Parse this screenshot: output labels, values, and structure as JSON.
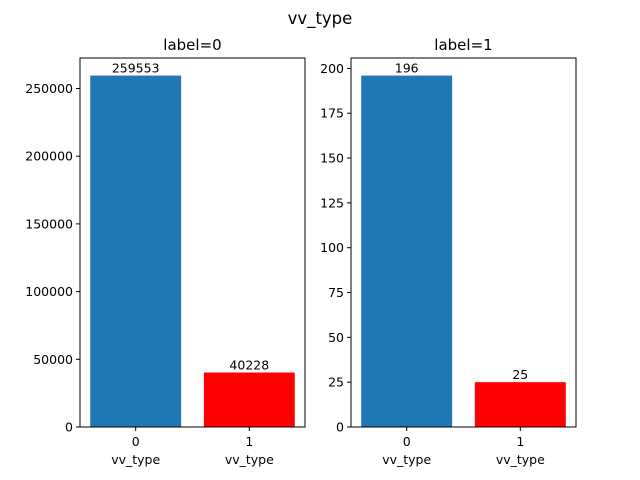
{
  "figure_title": "vv_type",
  "chart_data": [
    {
      "type": "bar",
      "title": "label=0",
      "categories": [
        "0",
        "1"
      ],
      "xlabels": [
        "vv_type",
        "vv_type"
      ],
      "values": [
        259553,
        40228
      ],
      "colors": [
        "#1f77b4",
        "#ff0000"
      ],
      "ylim": [
        0,
        272530
      ],
      "yticks": [
        0,
        50000,
        100000,
        150000,
        200000,
        250000
      ],
      "grid": false,
      "legend": "none"
    },
    {
      "type": "bar",
      "title": "label=1",
      "categories": [
        "0",
        "1"
      ],
      "xlabels": [
        "vv_type",
        "vv_type"
      ],
      "values": [
        196,
        25
      ],
      "colors": [
        "#1f77b4",
        "#ff0000"
      ],
      "ylim": [
        0,
        205.8
      ],
      "yticks": [
        0,
        25,
        50,
        75,
        100,
        125,
        150,
        175,
        200
      ],
      "grid": false,
      "legend": "none"
    }
  ]
}
